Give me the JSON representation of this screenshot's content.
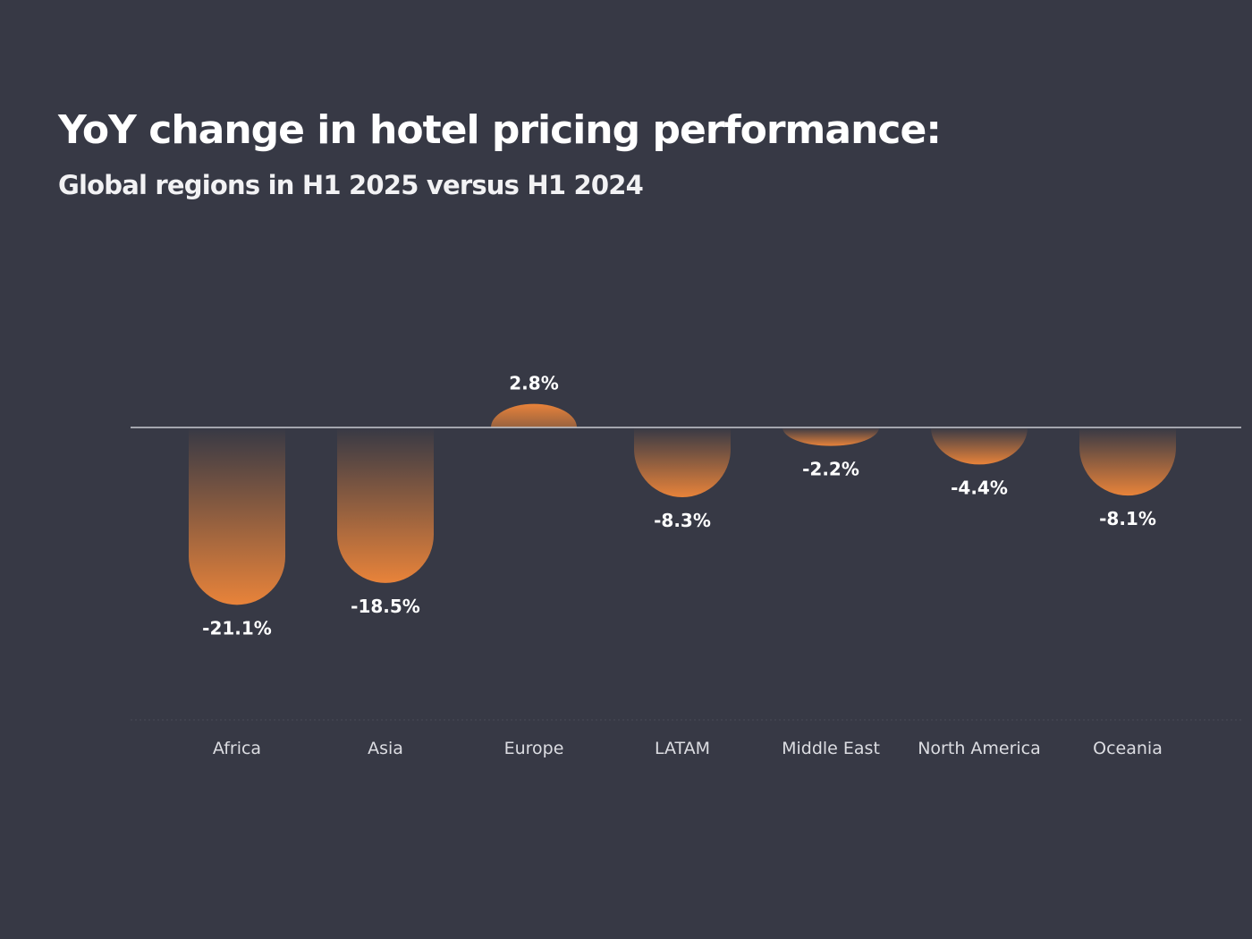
{
  "chart_data": {
    "type": "bar",
    "title": "YoY change in hotel pricing performance:",
    "subtitle": "Global regions in H1 2025 versus H1 2024",
    "categories": [
      "Africa",
      "Asia",
      "Europe",
      "LATAM",
      "Middle East",
      "North America",
      "Oceania"
    ],
    "values": [
      -21.1,
      -18.5,
      2.8,
      -8.3,
      -2.2,
      -4.4,
      -8.1
    ],
    "value_labels": [
      "-21.1%",
      "-18.5%",
      "2.8%",
      "-8.3%",
      "-2.2%",
      "-4.4%",
      "-8.1%"
    ],
    "xlabel": "",
    "ylabel": "",
    "grid": false,
    "bar_color": "#e8833a",
    "axis_color": "#c8cad2",
    "background": "#373945"
  }
}
